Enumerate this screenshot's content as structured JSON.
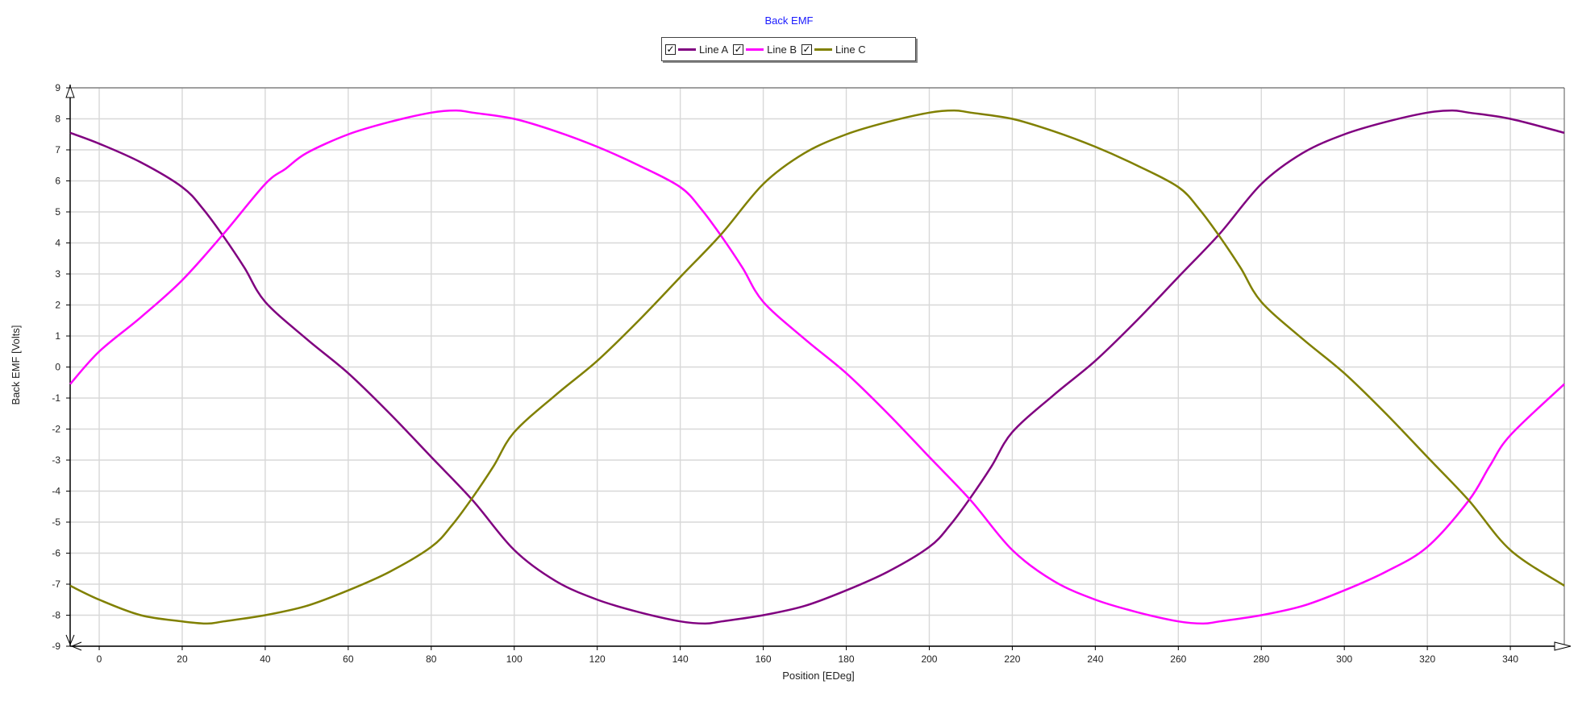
{
  "chart_data": {
    "type": "line",
    "title": "Back EMF",
    "xlabel": "Position [EDeg]",
    "ylabel": "Back EMF [Volts]",
    "xlim": [
      -7,
      353
    ],
    "ylim": [
      -9,
      9
    ],
    "x_ticks": [
      0,
      20,
      40,
      60,
      80,
      100,
      120,
      140,
      160,
      180,
      200,
      220,
      240,
      260,
      280,
      300,
      320,
      340
    ],
    "y_ticks": [
      9,
      8,
      7,
      6,
      5,
      4,
      3,
      2,
      1,
      0,
      -1,
      -2,
      -3,
      -4,
      -5,
      -6,
      -7,
      -8,
      -9
    ],
    "grid": true,
    "legend_position": "top-center",
    "series": [
      {
        "name": "Line A",
        "color": "#800080",
        "x": [
          -7,
          0,
          10,
          20,
          25,
          30,
          35,
          40,
          50,
          60,
          70,
          80,
          90,
          100,
          110,
          120,
          130,
          140,
          146,
          150,
          160,
          170,
          180,
          190,
          200,
          205,
          210,
          215,
          220,
          230,
          240,
          250,
          260,
          270,
          280,
          290,
          300,
          310,
          320,
          326,
          330,
          340,
          353
        ],
        "values": [
          7.55,
          7.2,
          6.6,
          5.8,
          5.1,
          4.2,
          3.2,
          2.1,
          0.9,
          -0.2,
          -1.5,
          -2.9,
          -4.3,
          -5.9,
          -6.9,
          -7.5,
          -7.9,
          -8.2,
          -8.27,
          -8.2,
          -8.0,
          -7.7,
          -7.2,
          -6.6,
          -5.8,
          -5.1,
          -4.2,
          -3.2,
          -2.1,
          -0.9,
          0.2,
          1.5,
          2.9,
          4.3,
          5.9,
          6.9,
          7.5,
          7.9,
          8.2,
          8.27,
          8.2,
          8.0,
          7.55
        ]
      },
      {
        "name": "Line B",
        "color": "#ff00ff",
        "x": [
          -7,
          0,
          10,
          20,
          30,
          40,
          45,
          50,
          60,
          70,
          80,
          86,
          90,
          100,
          110,
          120,
          130,
          140,
          145,
          150,
          155,
          160,
          170,
          180,
          190,
          200,
          210,
          220,
          230,
          240,
          250,
          260,
          266,
          270,
          280,
          290,
          300,
          310,
          320,
          330,
          335,
          340,
          353
        ],
        "values": [
          -0.55,
          0.5,
          1.6,
          2.8,
          4.3,
          5.9,
          6.4,
          6.9,
          7.5,
          7.9,
          8.2,
          8.27,
          8.2,
          8.0,
          7.6,
          7.1,
          6.5,
          5.8,
          5.1,
          4.2,
          3.2,
          2.1,
          0.9,
          -0.2,
          -1.5,
          -2.9,
          -4.3,
          -5.9,
          -6.9,
          -7.5,
          -7.9,
          -8.2,
          -8.27,
          -8.2,
          -8.0,
          -7.7,
          -7.2,
          -6.6,
          -5.8,
          -4.3,
          -3.2,
          -2.2,
          -0.55
        ]
      },
      {
        "name": "Line C",
        "color": "#808000",
        "x": [
          -7,
          0,
          10,
          20,
          26,
          30,
          40,
          50,
          60,
          70,
          80,
          85,
          90,
          95,
          100,
          110,
          120,
          130,
          140,
          150,
          160,
          170,
          180,
          190,
          200,
          206,
          210,
          220,
          230,
          240,
          250,
          260,
          265,
          270,
          275,
          280,
          290,
          300,
          310,
          320,
          330,
          340,
          353
        ],
        "values": [
          -7.05,
          -7.5,
          -8.0,
          -8.2,
          -8.27,
          -8.2,
          -8.0,
          -7.7,
          -7.2,
          -6.6,
          -5.8,
          -5.1,
          -4.2,
          -3.2,
          -2.1,
          -0.9,
          0.2,
          1.5,
          2.9,
          4.3,
          5.9,
          6.9,
          7.5,
          7.9,
          8.2,
          8.27,
          8.2,
          8.0,
          7.6,
          7.1,
          6.5,
          5.8,
          5.1,
          4.2,
          3.2,
          2.1,
          0.9,
          -0.2,
          -1.5,
          -2.9,
          -4.3,
          -5.9,
          -7.05
        ]
      }
    ]
  }
}
